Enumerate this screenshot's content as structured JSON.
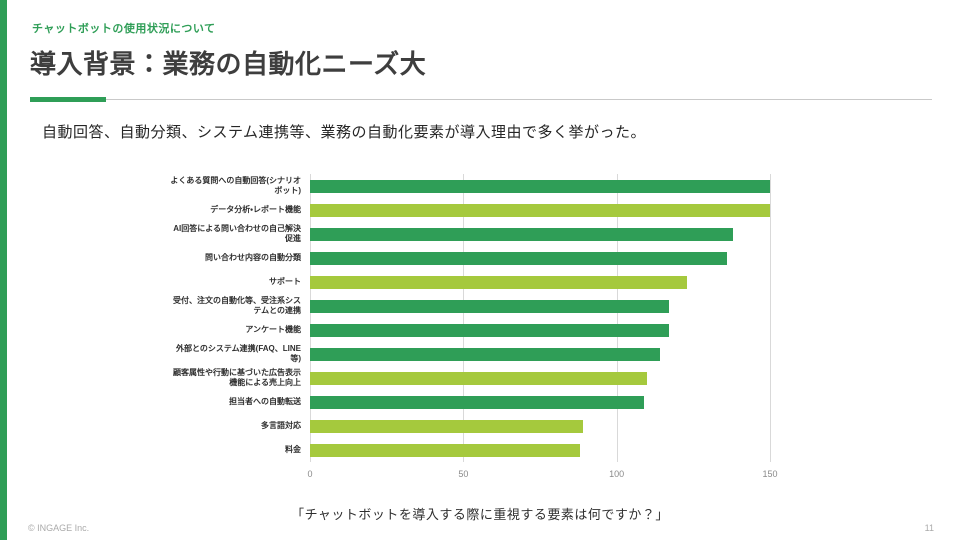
{
  "header": {
    "kicker": "チャットボットの使用状況について",
    "title": "導入背景：業務の自動化ニーズ大"
  },
  "lead": "自動回答、自動分類、システム連携等、業務の自動化要素が導入理由で多く挙がった。",
  "caption": "「チャットボットを導入する際に重視する要素は何ですか？」",
  "footer": {
    "copyright": "© INGAGE Inc.",
    "page_number": "11"
  },
  "accent_colors": {
    "green": "#2f9e57",
    "light_green": "#a5c93d"
  },
  "chart_data": {
    "type": "bar",
    "orientation": "horizontal",
    "title": "",
    "xlabel": "",
    "ylabel": "",
    "xlim": [
      0,
      150
    ],
    "xticks": [
      0,
      50,
      100,
      150
    ],
    "grid": true,
    "legend": "none",
    "colors": {
      "dark": "#2f9e57",
      "light": "#a5c93d"
    },
    "items": [
      {
        "label": "よくある質問への自動回答(シナリオボット)",
        "value": 150,
        "color": "dark"
      },
      {
        "label": "データ分析・レポート機能",
        "value": 150,
        "color": "light"
      },
      {
        "label": "AI回答による問い合わせの自己解決促進",
        "value": 138,
        "color": "dark"
      },
      {
        "label": "問い合わせ内容の自動分類",
        "value": 136,
        "color": "dark"
      },
      {
        "label": "サポート",
        "value": 123,
        "color": "light"
      },
      {
        "label": "受付、注文の自動化等、受注系システムとの連携",
        "value": 117,
        "color": "dark"
      },
      {
        "label": "アンケート機能",
        "value": 117,
        "color": "dark"
      },
      {
        "label": "外部とのシステム連携(FAQ、LINE等)",
        "value": 114,
        "color": "dark"
      },
      {
        "label": "顧客属性や行動に基づいた広告表示機能による売上向上",
        "value": 110,
        "color": "light"
      },
      {
        "label": "担当者への自動転送",
        "value": 109,
        "color": "dark"
      },
      {
        "label": "多言語対応",
        "value": 89,
        "color": "light"
      },
      {
        "label": "料金",
        "value": 88,
        "color": "light"
      }
    ]
  }
}
